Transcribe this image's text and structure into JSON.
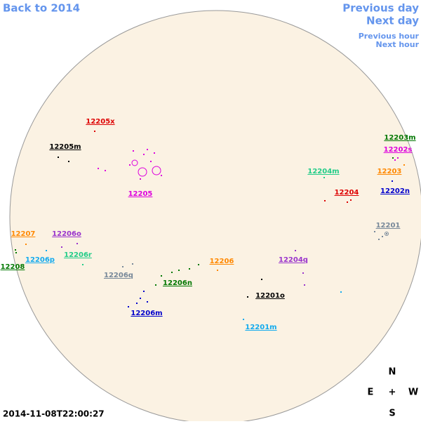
{
  "navigation": {
    "back": "Back to 2014",
    "previous_day": "Previous day",
    "next_day": "Next day",
    "previous_hour": "Previous hour",
    "next_hour": "Next hour"
  },
  "regions": [
    {
      "label": "12205x",
      "color": "#dd0000"
    },
    {
      "label": "12205m",
      "color": "#000000"
    },
    {
      "label": "12205",
      "color": "#dd00dd"
    },
    {
      "label": "12203m",
      "color": "#007700"
    },
    {
      "label": "12202s",
      "color": "#dd00dd"
    },
    {
      "label": "12203",
      "color": "#ff8800"
    },
    {
      "label": "12204m",
      "color": "#22cc88"
    },
    {
      "label": "12204",
      "color": "#dd0000"
    },
    {
      "label": "12202n",
      "color": "#0000cc"
    },
    {
      "label": "12201",
      "color": "#778899"
    },
    {
      "label": "12207",
      "color": "#ff8800"
    },
    {
      "label": "12206o",
      "color": "#9933cc"
    },
    {
      "label": "12206r",
      "color": "#22cc88"
    },
    {
      "label": "12206p",
      "color": "#11aaee"
    },
    {
      "label": "12208",
      "color": "#007700"
    },
    {
      "label": "12206",
      "color": "#ff8800"
    },
    {
      "label": "12204q",
      "color": "#9933cc"
    },
    {
      "label": "12206q",
      "color": "#778899"
    },
    {
      "label": "12206n",
      "color": "#007700"
    },
    {
      "label": "12201o",
      "color": "#000000"
    },
    {
      "label": "12206m",
      "color": "#0000cc"
    },
    {
      "label": "12201m",
      "color": "#11aaee"
    }
  ],
  "compass": {
    "north": "N",
    "east": "E",
    "center": "+",
    "west": "W",
    "south": "S"
  },
  "timestamp": "2014-11-08T22:00:27"
}
